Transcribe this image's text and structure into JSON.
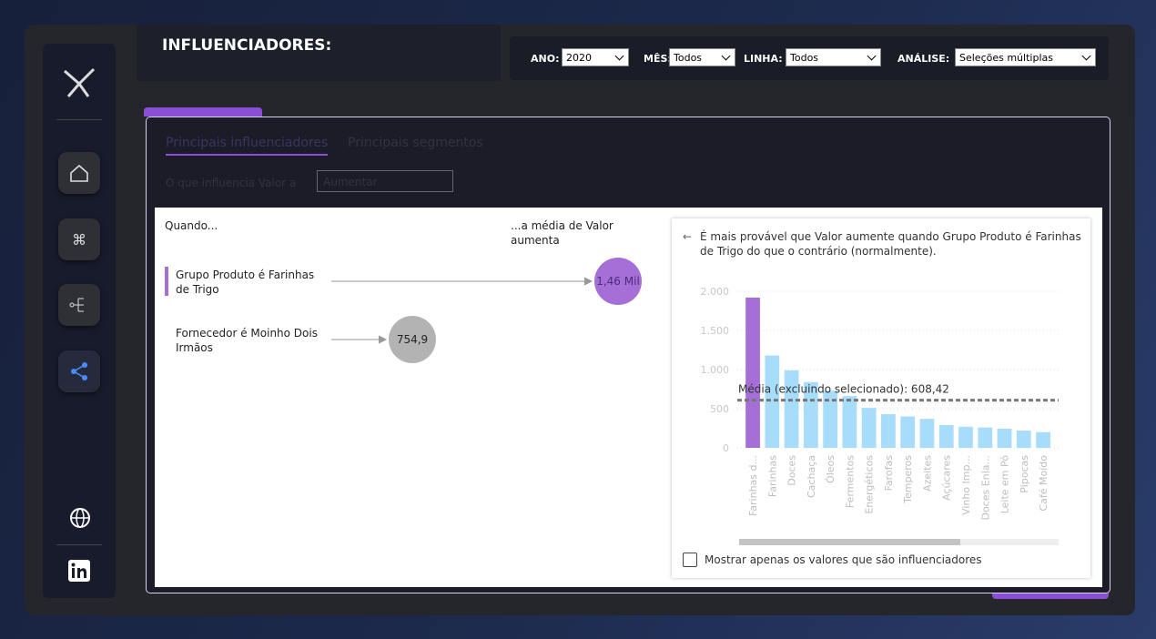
{
  "header": {
    "title": "INFLUENCIADORES:"
  },
  "filters": [
    {
      "label": "ANO:",
      "value": "2020"
    },
    {
      "label": "MÊS:",
      "value": "Todos"
    },
    {
      "label": "LINHA:",
      "value": "Todos"
    },
    {
      "label": "ANÁLISE:",
      "value": "Seleções múltiplas"
    }
  ],
  "tabs": [
    "Principais influenciadores",
    "Principais segmentos"
  ],
  "question": {
    "text": "O que influencia Valor a",
    "choice": "Aumentar"
  },
  "influencers": {
    "when": "Quando...",
    "result": "...a média de Valor aumenta",
    "items": [
      {
        "label": "Grupo Produto é Farinhas de Trigo",
        "value": "1,46 Mil"
      },
      {
        "label": "Fornecedor é Moinho Dois Irmãos",
        "value": "754,9"
      }
    ]
  },
  "detail": {
    "text": "É mais provável que Valor aumente quando Grupo Produto é Farinhas de Trigo do que o contrário (normalmente).",
    "checkbox": "Mostrar apenas os valores que são influenciadores"
  },
  "chart_data": {
    "type": "bar",
    "categories": [
      "Farinhas d...",
      "Farinhas",
      "Doces",
      "Cachaça",
      "Óleos",
      "Fermentos",
      "Energéticos",
      "Farofas",
      "Temperos",
      "Azeites",
      "Açúcares",
      "Vinho Imp...",
      "Doces Enla...",
      "Leite em Pó",
      "Pipocas",
      "Café Moído"
    ],
    "values": [
      1920,
      1180,
      990,
      840,
      730,
      660,
      510,
      430,
      400,
      370,
      290,
      270,
      260,
      245,
      220,
      200
    ],
    "colors": [
      "#a66fd8",
      "#a7dcfb",
      "#a7dcfb",
      "#a7dcfb",
      "#a7dcfb",
      "#a7dcfb",
      "#a7dcfb",
      "#a7dcfb",
      "#a7dcfb",
      "#a7dcfb",
      "#a7dcfb",
      "#a7dcfb",
      "#a7dcfb",
      "#a7dcfb",
      "#a7dcfb",
      "#a7dcfb"
    ],
    "ylim": [
      0,
      2000
    ],
    "yticks": [
      0,
      500,
      {
        "value": 1000,
        "label": "1.000"
      },
      {
        "value": 1500,
        "label": "1.500"
      },
      {
        "value": 2000,
        "label": "2.000"
      }
    ],
    "grid": true,
    "reference_line": {
      "value": 608.42,
      "label": "Média (excluindo selecionado): 608,42"
    }
  }
}
